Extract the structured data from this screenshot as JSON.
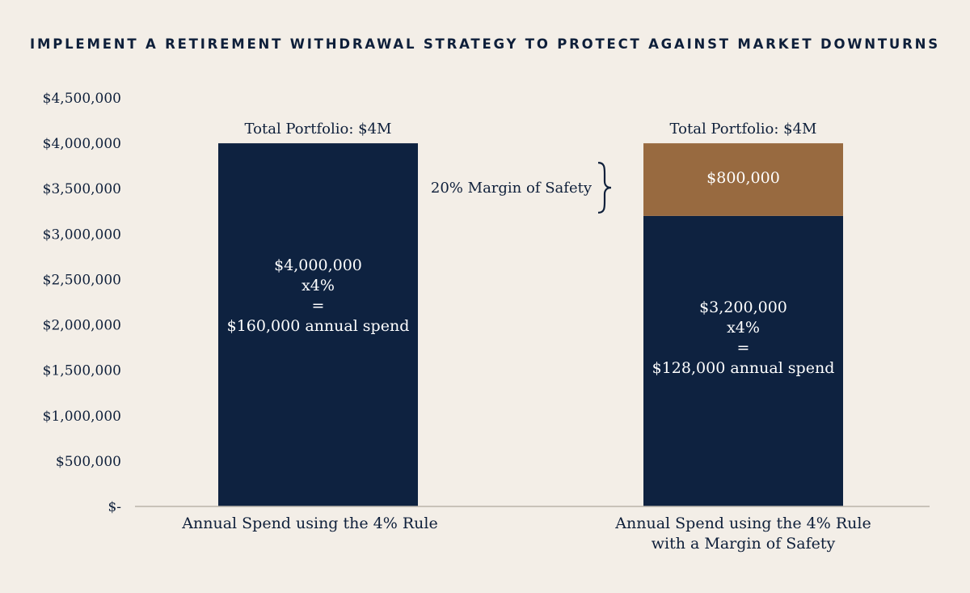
{
  "colors": {
    "background": "#f3eee7",
    "navy": "#0e2240",
    "bronze": "#986a40",
    "text": "#0e1f3a",
    "axis": "#b9b3aa"
  },
  "chart_data": {
    "type": "bar",
    "stacked": true,
    "title": "IMPLEMENT A RETIREMENT WITHDRAWAL STRATEGY TO PROTECT AGAINST MARKET DOWNTURNS",
    "ylim": [
      0,
      4500000
    ],
    "yticks": [
      0,
      500000,
      1000000,
      1500000,
      2000000,
      2500000,
      3000000,
      3500000,
      4000000,
      4500000
    ],
    "ytick_labels": [
      "$-",
      "$500,000",
      "$1,000,000",
      "$1,500,000",
      "$2,000,000",
      "$2,500,000",
      "$3,000,000",
      "$3,500,000",
      "$4,000,000",
      "$4,500,000"
    ],
    "grid": false,
    "categories": [
      [
        "Annual Spend using the 4% Rule"
      ],
      [
        "Annual Spend using the 4% Rule",
        "with a Margin of Safety"
      ]
    ],
    "top_labels": [
      "Total Portfolio: $4M",
      "Total Portfolio: $4M"
    ],
    "series": [
      {
        "values": [
          4000000,
          3200000
        ],
        "color": "#0e2240",
        "labels": [
          [
            "$4,000,000",
            "x4%",
            "=",
            "$160,000 annual spend"
          ],
          [
            "$3,200,000",
            "x4%",
            "=",
            "$128,000 annual spend"
          ]
        ]
      },
      {
        "values": [
          0,
          800000
        ],
        "color": "#986a40",
        "labels": [
          [],
          [
            "$800,000"
          ]
        ]
      }
    ],
    "annotations": [
      {
        "text": "20% Margin of Safety",
        "category": 1,
        "range": [
          3200000,
          4000000
        ],
        "symbol": "brace"
      }
    ]
  }
}
